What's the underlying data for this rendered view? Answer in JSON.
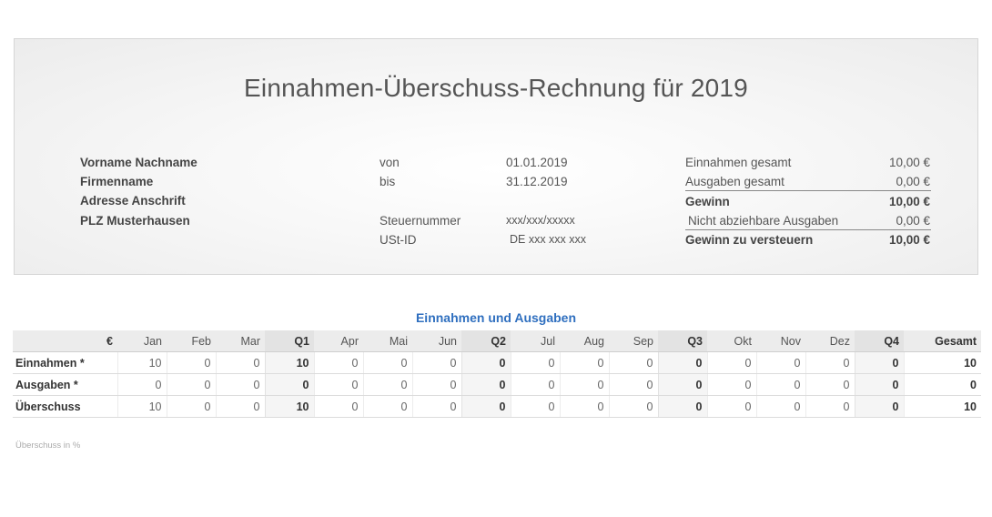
{
  "header": {
    "title": "Einnahmen-Überschuss-Rechnung für 2019",
    "address": {
      "name": "Vorname Nachname",
      "company": "Firmenname",
      "street": "Adresse Anschrift",
      "city": "PLZ Musterhausen"
    },
    "period": {
      "from_label": "von",
      "from_value": "01.01.2019",
      "to_label": "bis",
      "to_value": "31.12.2019",
      "tax_number_label": "Steuernummer",
      "tax_number_value": "xxx/xxx/xxxxx",
      "vat_id_label": "USt-ID",
      "vat_id_value": "DE xxx xxx xxx"
    },
    "summary": {
      "income_label": "Einnahmen gesamt",
      "income_value": "10,00 €",
      "expenses_label": "Ausgaben gesamt",
      "expenses_value": "0,00 €",
      "profit_label": "Gewinn",
      "profit_value": "10,00 €",
      "nondeductible_label": "Nicht abziehbare Ausgaben",
      "nondeductible_value": "0,00 €",
      "taxable_label": "Gewinn zu versteuern",
      "taxable_value": "10,00 €"
    }
  },
  "table": {
    "title": "Einnahmen und Ausgaben",
    "columns": [
      "€",
      "Jan",
      "Feb",
      "Mar",
      "Q1",
      "Apr",
      "Mai",
      "Jun",
      "Q2",
      "Jul",
      "Aug",
      "Sep",
      "Q3",
      "Okt",
      "Nov",
      "Dez",
      "Q4",
      "Gesamt"
    ],
    "rows": [
      {
        "label": "Einnahmen *",
        "values": [
          "10",
          "0",
          "0",
          "10",
          "0",
          "0",
          "0",
          "0",
          "0",
          "0",
          "0",
          "0",
          "0",
          "0",
          "0",
          "0",
          "10"
        ]
      },
      {
        "label": "Ausgaben *",
        "values": [
          "0",
          "0",
          "0",
          "0",
          "0",
          "0",
          "0",
          "0",
          "0",
          "0",
          "0",
          "0",
          "0",
          "0",
          "0",
          "0",
          "0"
        ]
      },
      {
        "label": "Überschuss",
        "values": [
          "10",
          "0",
          "0",
          "10",
          "0",
          "0",
          "0",
          "0",
          "0",
          "0",
          "0",
          "0",
          "0",
          "0",
          "0",
          "0",
          "10"
        ]
      }
    ],
    "footnote": "Überschuss in %"
  }
}
